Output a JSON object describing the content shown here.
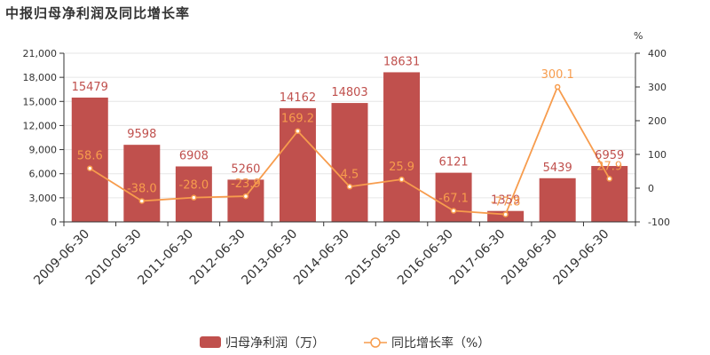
{
  "colors": {
    "bar": "#c0504d",
    "bar_label": "#c0504d",
    "line": "#f79c4d",
    "line_label": "#f79c4d",
    "axis": "#333333",
    "grid": "#e6e6e6"
  },
  "chart_data": {
    "type": "bar+line",
    "title": "中报归母净利润及同比增长率",
    "categories": [
      "2009-06-30",
      "2010-06-30",
      "2011-06-30",
      "2012-06-30",
      "2013-06-30",
      "2014-06-30",
      "2015-06-30",
      "2016-06-30",
      "2017-06-30",
      "2018-06-30",
      "2019-06-30"
    ],
    "series": [
      {
        "name": "归母净利润（万）",
        "type": "bar",
        "axis": "left",
        "values": [
          15479,
          9598,
          6908,
          5260,
          14162,
          14803,
          18631,
          6121,
          1359,
          5439,
          6959
        ],
        "labels": [
          "15479",
          "9598",
          "6908",
          "5260",
          "14162",
          "14803",
          "18631",
          "6121",
          "1359",
          "5439",
          "6959"
        ]
      },
      {
        "name": "同比增长率（%）",
        "type": "line",
        "axis": "right",
        "values": [
          58.6,
          -38.0,
          -28.0,
          -23.9,
          169.2,
          4.5,
          25.9,
          -67.1,
          -77.8,
          300.1,
          27.9
        ],
        "labels": [
          "58.6",
          "-38.0",
          "-28.0",
          "-23.9",
          "169.2",
          "4.5",
          "25.9",
          "-67.1",
          "-77.8",
          "300.1",
          "27.9"
        ]
      }
    ],
    "y_left": {
      "ylim": [
        0,
        21000
      ],
      "ticks": [
        "0",
        "3,000",
        "6,000",
        "9,000",
        "12,000",
        "15,000",
        "18,000",
        "21,000"
      ],
      "tick_values": [
        0,
        3000,
        6000,
        9000,
        12000,
        15000,
        18000,
        21000
      ]
    },
    "y_right": {
      "unit": "%",
      "ylim": [
        -100,
        400
      ],
      "ticks": [
        "-100",
        "0",
        "100",
        "200",
        "300",
        "400"
      ],
      "tick_values": [
        -100,
        0,
        100,
        200,
        300,
        400
      ]
    },
    "grid": true,
    "legend_position": "bottom"
  }
}
